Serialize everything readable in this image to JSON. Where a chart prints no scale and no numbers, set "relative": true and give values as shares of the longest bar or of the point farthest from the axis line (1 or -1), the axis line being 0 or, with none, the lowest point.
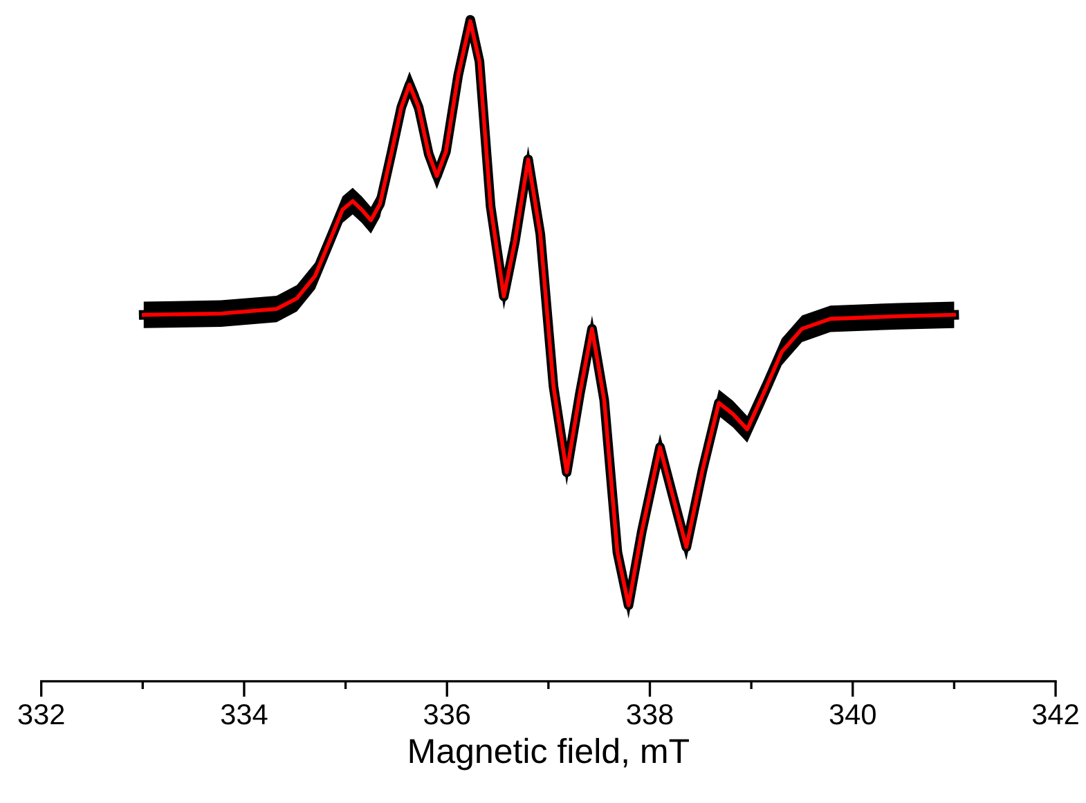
{
  "chart_data": {
    "type": "line",
    "relative": true,
    "xlabel": "Magnetic field, mT",
    "xlim": [
      332,
      342
    ],
    "xticks": [
      332,
      {
        "value": 333,
        "label": null
      },
      334,
      {
        "value": 335,
        "label": null
      },
      336,
      {
        "value": 337,
        "label": null
      },
      338,
      {
        "value": 339,
        "label": null
      },
      340,
      {
        "value": 341,
        "label": null
      },
      342
    ],
    "x": [
      333.01,
      333.77,
      334.32,
      334.52,
      334.7,
      334.86,
      334.97,
      335.07,
      335.16,
      335.25,
      335.34,
      335.45,
      335.55,
      335.63,
      335.72,
      335.82,
      335.9,
      335.99,
      336.11,
      336.23,
      336.32,
      336.43,
      336.56,
      336.67,
      336.8,
      336.92,
      337.05,
      337.18,
      337.31,
      337.43,
      337.55,
      337.68,
      337.79,
      337.92,
      338.1,
      338.23,
      338.36,
      338.52,
      338.68,
      338.82,
      338.96,
      339.12,
      339.3,
      339.5,
      339.78,
      340.46,
      341.0
    ],
    "series": [
      {
        "color": "#000000",
        "values": [
          0.554,
          0.556,
          0.563,
          0.579,
          0.613,
          0.672,
          0.713,
          0.726,
          0.713,
          0.697,
          0.722,
          0.797,
          0.868,
          0.902,
          0.868,
          0.797,
          0.764,
          0.801,
          0.916,
          1.0,
          0.937,
          0.718,
          0.582,
          0.665,
          0.789,
          0.676,
          0.446,
          0.316,
          0.435,
          0.533,
          0.425,
          0.195,
          0.115,
          0.226,
          0.354,
          0.278,
          0.203,
          0.32,
          0.421,
          0.404,
          0.381,
          0.435,
          0.498,
          0.533,
          0.548,
          0.552,
          0.554
        ],
        "lower": [
          0.534,
          0.536,
          0.543,
          0.559,
          0.593,
          0.652,
          0.693,
          0.706,
          0.693,
          0.677,
          0.702,
          0.777,
          0.848,
          0.882,
          0.848,
          0.777,
          0.744,
          0.781,
          0.896,
          0.98,
          0.917,
          0.698,
          0.562,
          0.645,
          0.769,
          0.656,
          0.426,
          0.296,
          0.415,
          0.513,
          0.405,
          0.175,
          0.095,
          0.206,
          0.334,
          0.258,
          0.183,
          0.3,
          0.401,
          0.384,
          0.361,
          0.415,
          0.478,
          0.513,
          0.528,
          0.532,
          0.534
        ],
        "upper": [
          0.574,
          0.576,
          0.583,
          0.599,
          0.633,
          0.692,
          0.733,
          0.746,
          0.733,
          0.717,
          0.742,
          0.817,
          0.888,
          0.922,
          0.888,
          0.817,
          0.784,
          0.821,
          0.936,
          1.0,
          0.957,
          0.738,
          0.602,
          0.685,
          0.809,
          0.696,
          0.466,
          0.336,
          0.455,
          0.553,
          0.445,
          0.215,
          0.135,
          0.246,
          0.374,
          0.298,
          0.223,
          0.34,
          0.441,
          0.424,
          0.401,
          0.455,
          0.518,
          0.553,
          0.568,
          0.572,
          0.574
        ]
      },
      {
        "color": "#ff0000",
        "values": [
          0.554,
          0.556,
          0.563,
          0.579,
          0.613,
          0.672,
          0.713,
          0.726,
          0.713,
          0.697,
          0.722,
          0.797,
          0.868,
          0.902,
          0.868,
          0.797,
          0.764,
          0.801,
          0.916,
          0.998,
          0.937,
          0.718,
          0.582,
          0.665,
          0.789,
          0.676,
          0.446,
          0.316,
          0.435,
          0.533,
          0.425,
          0.195,
          0.115,
          0.226,
          0.354,
          0.278,
          0.203,
          0.32,
          0.421,
          0.404,
          0.381,
          0.435,
          0.498,
          0.533,
          0.548,
          0.552,
          0.554
        ]
      }
    ]
  }
}
